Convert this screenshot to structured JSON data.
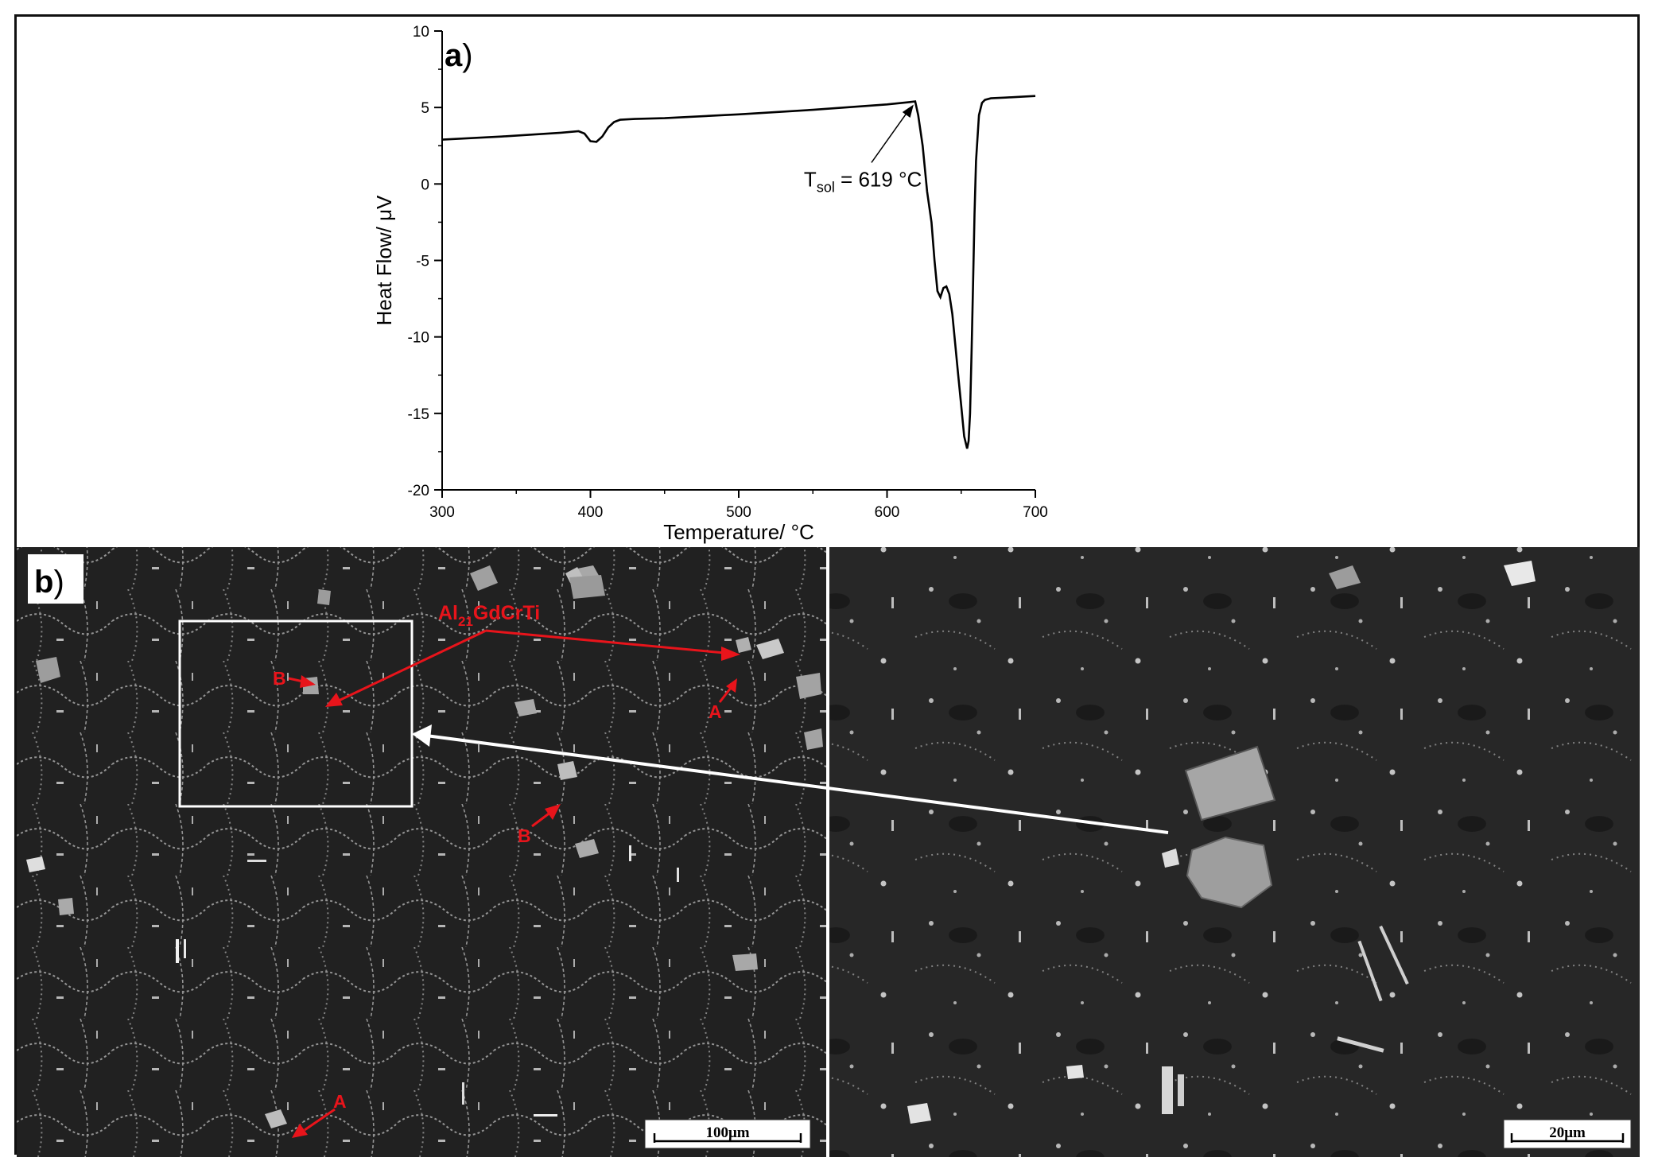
{
  "panel_a": {
    "label": "a",
    "chart_data": {
      "type": "line",
      "xlabel": "Temperature/ °C",
      "ylabel": "Heat Flow/ μV",
      "xlim": [
        300,
        700
      ],
      "ylim": [
        -20,
        10
      ],
      "x_ticks": [
        300,
        400,
        500,
        600,
        700
      ],
      "y_ticks": [
        10,
        5,
        0,
        -5,
        -10,
        -15,
        -20
      ],
      "grid": false,
      "series": [
        {
          "x": [
            300,
            340,
            380,
            392,
            396,
            400,
            404,
            408,
            412,
            416,
            420,
            430,
            450,
            500,
            550,
            600,
            615,
            619,
            621,
            624,
            627,
            630,
            632,
            634,
            636,
            638,
            640,
            642,
            644,
            646,
            648,
            650,
            652,
            654,
            655,
            656,
            657,
            658,
            659,
            660,
            662,
            664,
            666,
            670,
            680,
            690,
            700
          ],
          "y": [
            2.9,
            3.1,
            3.35,
            3.45,
            3.3,
            2.8,
            2.75,
            3.1,
            3.7,
            4.05,
            4.2,
            4.25,
            4.3,
            4.55,
            4.85,
            5.2,
            5.35,
            5.4,
            4.5,
            2.5,
            -0.5,
            -2.5,
            -5.0,
            -7.0,
            -7.4,
            -6.8,
            -6.7,
            -7.2,
            -8.5,
            -10.5,
            -12.5,
            -14.5,
            -16.5,
            -17.3,
            -16.8,
            -15.0,
            -11.0,
            -6.5,
            -2.0,
            1.5,
            4.5,
            5.3,
            5.5,
            5.6,
            5.65,
            5.7,
            5.75
          ]
        }
      ],
      "annotations": [
        {
          "text_main": "T",
          "text_sub": "sol",
          "text_rest": " = 619 °C",
          "x": 619,
          "y": 5.4
        }
      ]
    }
  },
  "panel_b": {
    "label": "b",
    "phase_label_main": "Al",
    "phase_label_sub": "21",
    "phase_label_rest": "GdCrTi",
    "marker_a": "A",
    "marker_b": "B",
    "scale_left": "100μm",
    "scale_right": "20μm"
  },
  "colors": {
    "annotation_red": "#e8141b",
    "sem_background": "#262626",
    "curve": "#000000"
  }
}
